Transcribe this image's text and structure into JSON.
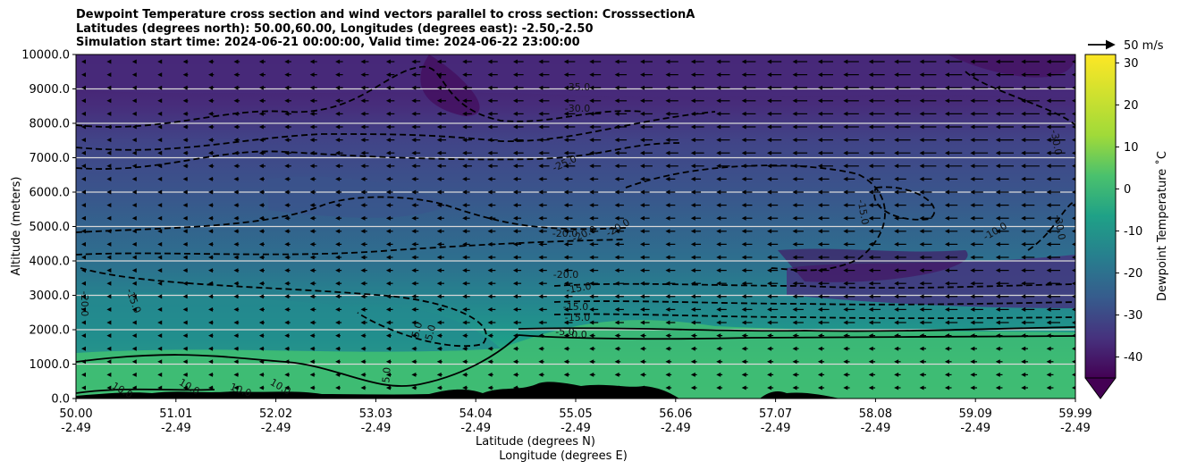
{
  "chart_data": {
    "type": "heatmap",
    "title_lines": [
      "Dewpoint Temperature cross section and wind vectors parallel to cross section: CrosssectionA",
      "Latitudes (degrees north): 50.00,60.00, Longitudes (degrees east): -2.50,-2.50",
      "Simulation start time: 2024-06-21 00:00:00, Valid time: 2024-06-22 23:00:00"
    ],
    "ylabel": "Altitude (meters)",
    "xlabel_lines": [
      "Latitude (degrees N)",
      "Longitude (degrees E)"
    ],
    "ylim": [
      0,
      10000
    ],
    "y_ticks": [
      "0.0",
      "1000.0",
      "2000.0",
      "3000.0",
      "4000.0",
      "5000.0",
      "6000.0",
      "7000.0",
      "8000.0",
      "9000.0",
      "10000.0"
    ],
    "x_tick_lat": [
      "50.00",
      "51.01",
      "52.02",
      "53.03",
      "54.04",
      "55.05",
      "56.06",
      "57.07",
      "58.08",
      "59.09",
      "59.99"
    ],
    "x_tick_lon": [
      "-2.49",
      "-2.49",
      "-2.49",
      "-2.49",
      "-2.49",
      "-2.49",
      "-2.49",
      "-2.49",
      "-2.49",
      "-2.49",
      "-2.49"
    ],
    "colorbar": {
      "label": "Dewpoint Temperature ˚C",
      "range": [
        -45,
        32
      ],
      "ticks": [
        "-40",
        "-30",
        "-20",
        "-10",
        "0",
        "10",
        "20",
        "30"
      ],
      "colormap": "viridis",
      "extend": "min"
    },
    "wind_key": {
      "label": "50 m/s"
    },
    "grid": "horizontal",
    "contours": [
      {
        "label": "-35.0",
        "style": "dashed"
      },
      {
        "label": "-30.0",
        "style": "dashed"
      },
      {
        "label": "-25.0",
        "style": "dashed"
      },
      {
        "label": "-20.0",
        "style": "dashed"
      },
      {
        "label": "-15.0",
        "style": "dashed"
      },
      {
        "label": "-5.0",
        "style": "dashed"
      },
      {
        "label": "0.0",
        "style": "solid"
      },
      {
        "label": "5.0",
        "style": "solid"
      },
      {
        "label": "10.0",
        "style": "solid"
      }
    ],
    "contour_labels_shown": [
      "-35.0",
      "-30.0",
      "-25.0",
      "-20.0",
      "-20.0",
      "-20.0",
      "-20.0",
      "-15.0",
      "-15.0",
      "-15.0",
      "-15.0",
      "-5.0",
      "0.0",
      "5.0",
      "5.0",
      "5.0",
      "-10.0",
      "-30.0",
      "-20.0",
      "-30.0",
      "10.0",
      "10.0",
      "10.0",
      "10.0",
      "-15.0"
    ]
  }
}
